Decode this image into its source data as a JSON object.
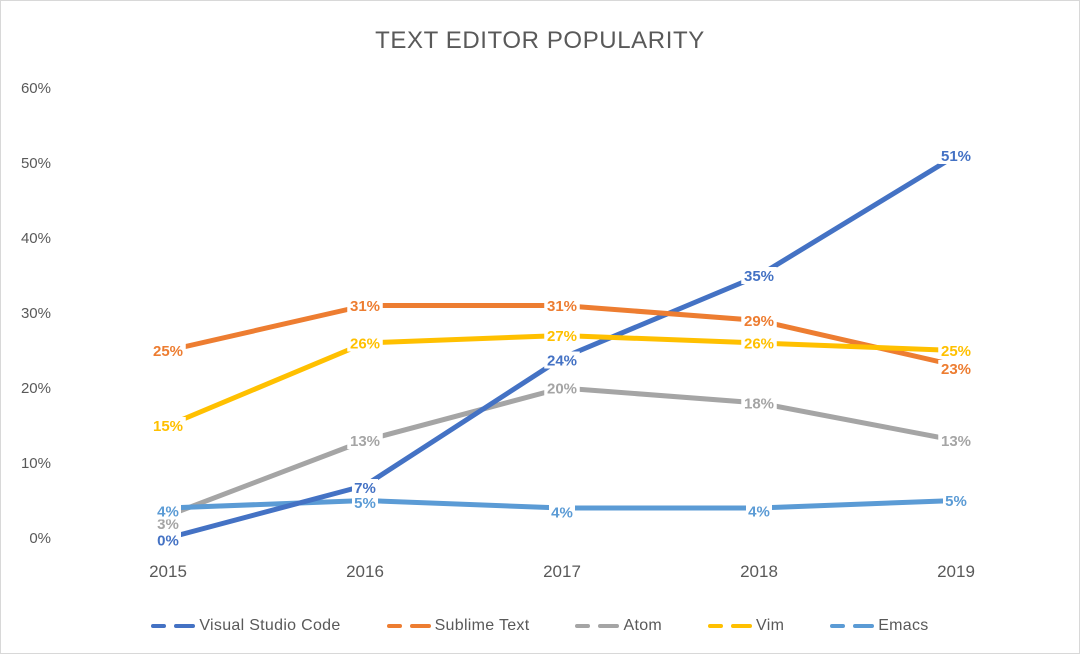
{
  "chart_data": {
    "type": "line",
    "title": "TEXT EDITOR POPULARITY",
    "x": [
      "2015",
      "2016",
      "2017",
      "2018",
      "2019"
    ],
    "series": [
      {
        "name": "Visual Studio Code",
        "color": "#4472C4",
        "values": [
          0,
          7,
          24,
          35,
          51
        ]
      },
      {
        "name": "Sublime Text",
        "color": "#ED7D31",
        "values": [
          25,
          31,
          31,
          29,
          23
        ]
      },
      {
        "name": "Atom",
        "color": "#A5A5A5",
        "values": [
          3,
          13,
          20,
          18,
          13
        ]
      },
      {
        "name": "Vim",
        "color": "#FFC000",
        "values": [
          15,
          26,
          27,
          26,
          25
        ]
      },
      {
        "name": "Emacs",
        "color": "#5B9BD5",
        "values": [
          4,
          5,
          4,
          4,
          5
        ]
      }
    ],
    "y_ticks": [
      {
        "label": "60%",
        "value": 60
      },
      {
        "label": "50%",
        "value": 50
      },
      {
        "label": "40%",
        "value": 40
      },
      {
        "label": "30%",
        "value": 30
      },
      {
        "label": "20%",
        "value": 20
      },
      {
        "label": "10%",
        "value": 10
      },
      {
        "label": "0%",
        "value": 0
      }
    ],
    "ylim": [
      0,
      60
    ],
    "grid": false,
    "data_labels": true,
    "data_label_suffix": "%",
    "legend_position": "bottom"
  },
  "colors": {
    "axis_text": "#595959",
    "title_text": "#595959",
    "legend_text": "#595959",
    "label_halo": "#ffffff",
    "background": "#ffffff",
    "border": "#d8d8d8"
  }
}
